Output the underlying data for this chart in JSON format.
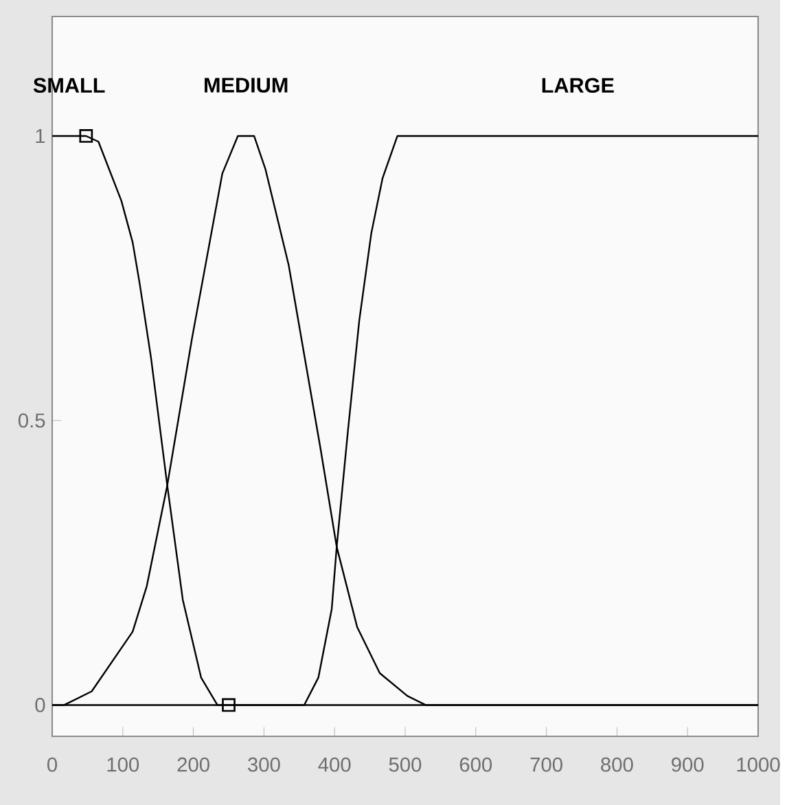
{
  "chart_data": {
    "type": "line",
    "xlim": [
      0,
      1000
    ],
    "ylim": [
      -0.055,
      1.21
    ],
    "xticks": [
      0,
      100,
      200,
      300,
      400,
      500,
      600,
      700,
      800,
      900,
      1000
    ],
    "yticks": [
      0,
      {
        "value": 0.5,
        "label": "0.5"
      },
      1
    ],
    "grid": false,
    "series": [
      {
        "name": "SMALL",
        "color": "#000000",
        "x": [
          0,
          48,
          65.5,
          98,
          114,
          124,
          140,
          163,
          185,
          211,
          234,
          1000
        ],
        "values": [
          1,
          1,
          0.99,
          0.886,
          0.813,
          0.74,
          0.61,
          0.386,
          0.185,
          0.048,
          0,
          0
        ]
      },
      {
        "name": "MEDIUM",
        "color": "#000000",
        "x": [
          0,
          17,
          56,
          114,
          134,
          163,
          198,
          241,
          263,
          286,
          302,
          335,
          380,
          403,
          432,
          464,
          503,
          529,
          1000
        ],
        "values": [
          0,
          0,
          0.024,
          0.129,
          0.209,
          0.386,
          0.644,
          0.934,
          1,
          1,
          0.942,
          0.773,
          0.451,
          0.278,
          0.137,
          0.056,
          0.016,
          0,
          0
        ]
      },
      {
        "name": "LARGE",
        "color": "#000000",
        "x": [
          0,
          357,
          377,
          396,
          403,
          419,
          435,
          452,
          468,
          489,
          1000
        ],
        "values": [
          0,
          0,
          0.048,
          0.169,
          0.278,
          0.483,
          0.676,
          0.829,
          0.926,
          1,
          1
        ]
      },
      {
        "type": "scatter",
        "marker": "square",
        "color": "#000000",
        "x": [
          48,
          250
        ],
        "values": [
          1,
          0
        ]
      }
    ]
  }
}
